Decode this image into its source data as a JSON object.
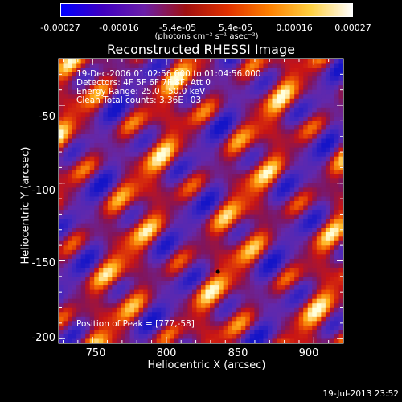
{
  "colorbar": {
    "ticks": [
      "-0.00027",
      "-0.00016",
      "-5.4e-05",
      "5.4e-05",
      "0.00016",
      "0.00027"
    ],
    "unit_label": "(photons cm⁻² s⁻¹ asec⁻²)",
    "colors": [
      "#0000ff",
      "#4000c0",
      "#6b1fa8",
      "#a01010",
      "#e03000",
      "#ff8000",
      "#ffd040",
      "#ffffff"
    ]
  },
  "chart_data": {
    "type": "heatmap",
    "title": "Reconstructed RHESSI Image",
    "xlabel": "Heliocentric X (arcsec)",
    "ylabel": "Heliocentric Y (arcsec)",
    "xlim": [
      727,
      920
    ],
    "ylim": [
      -203,
      -20
    ],
    "x_ticks": [
      "750",
      "800",
      "850",
      "900"
    ],
    "y_ticks": [
      "-50",
      "-100",
      "-150",
      "-200"
    ],
    "value_range": [
      -0.00027,
      0.00027
    ],
    "annotations": [
      "19-Dec-2006 01:02:56.000 to 01:04:56.000",
      "Detectors: 4F 5F 6F 7F 8F, Att 0",
      "Energy Range: 25.0 - 50.0 keV",
      "Clean     Total counts: 3.36E+03"
    ],
    "position_of_peak_label": "Position of Peak = [777,-58]",
    "peak_position": [
      777,
      -58
    ]
  },
  "datestamp": "19-Jul-2013 23:52"
}
